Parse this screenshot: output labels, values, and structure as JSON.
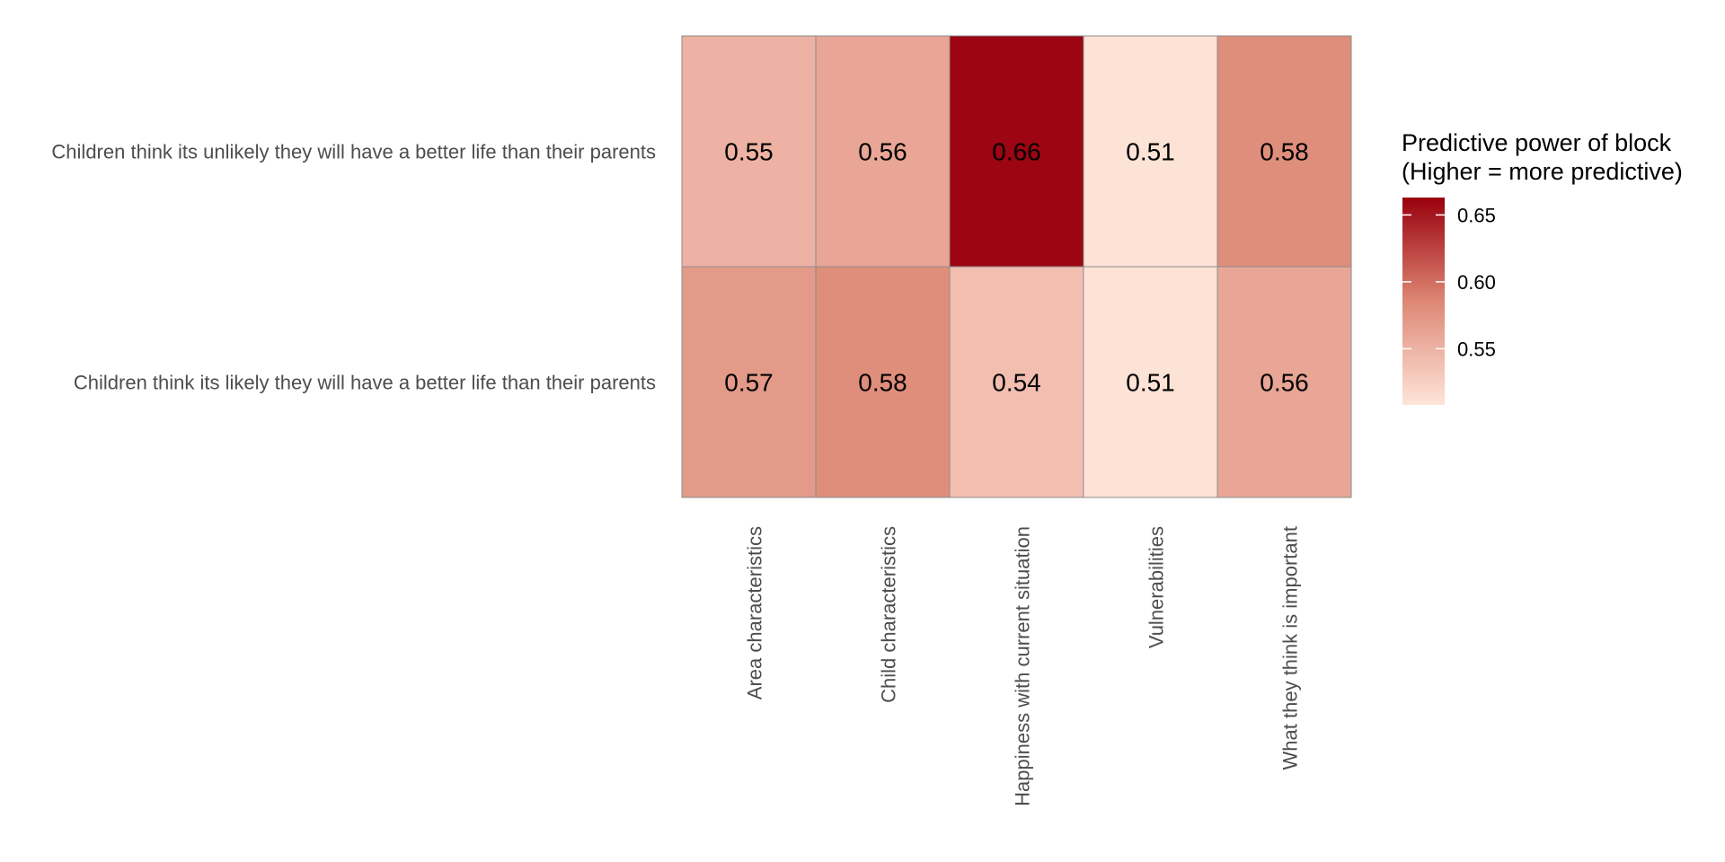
{
  "chart_data": {
    "type": "heatmap",
    "title": "",
    "xlabel": "",
    "ylabel": "",
    "x_categories": [
      "Area characteristics",
      "Child characteristics",
      "Happiness with current situation",
      "Vulnerabilities",
      "What they think is important"
    ],
    "y_categories": [
      "Children think its unlikely they will have a better life than their parents",
      "Children think its likely they will have a better life than their parents"
    ],
    "values": [
      [
        0.55,
        0.56,
        0.66,
        0.51,
        0.58
      ],
      [
        0.57,
        0.58,
        0.54,
        0.51,
        0.56
      ]
    ],
    "value_labels": [
      [
        "0.55",
        "0.56",
        "0.66",
        "0.51",
        "0.58"
      ],
      [
        "0.57",
        "0.58",
        "0.54",
        "0.51",
        "0.56"
      ]
    ],
    "color_scale": {
      "low": "#fee5d9",
      "mid": "#de8775",
      "high": "#99000d",
      "domain": [
        0.508,
        0.663
      ]
    },
    "legend": {
      "title_line1": "Predictive power of block",
      "title_line2": "(Higher = more predictive)",
      "placement": "right",
      "ticks": [
        0.55,
        0.6,
        0.65
      ],
      "tick_labels": [
        "0.55",
        "0.60",
        "0.65"
      ]
    },
    "grid": false
  }
}
